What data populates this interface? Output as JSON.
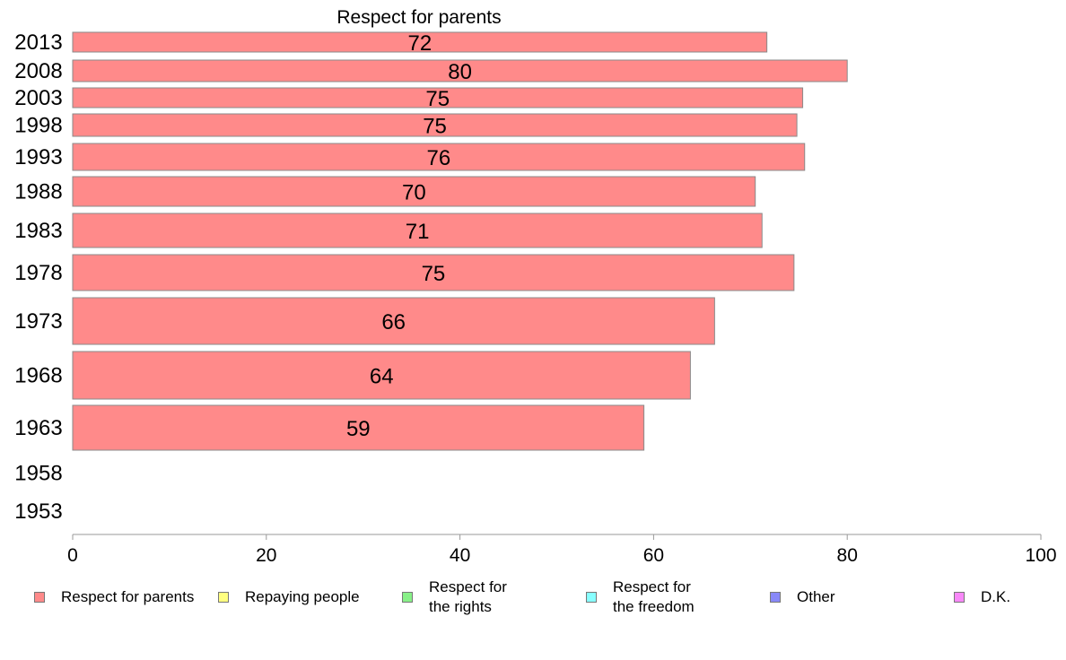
{
  "chart_data": {
    "type": "bar",
    "orientation": "horizontal",
    "title": "Respect for parents",
    "categories": [
      "2013",
      "2008",
      "2003",
      "1998",
      "1993",
      "1988",
      "1983",
      "1978",
      "1973",
      "1968",
      "1963",
      "1958",
      "1953"
    ],
    "series": [
      {
        "name": "Respect for parents",
        "color": "#ff8a8a",
        "values": [
          72,
          80,
          75,
          75,
          76,
          70,
          71,
          75,
          66,
          64,
          59,
          null,
          null
        ],
        "bar_extent": [
          71.7,
          80.0,
          75.4,
          74.8,
          75.6,
          70.5,
          71.2,
          74.5,
          66.3,
          63.8,
          59.0,
          null,
          null
        ]
      }
    ],
    "xlim": [
      0,
      100
    ],
    "xticks": [
      "0",
      "20",
      "40",
      "60",
      "80",
      "100"
    ],
    "grid": false,
    "legend_position": "bottom"
  },
  "legend": {
    "items": [
      {
        "label": "Respect for parents",
        "color": "#ff8a8a"
      },
      {
        "label": "Repaying people",
        "color": "#ffff80"
      },
      {
        "label": "Respect for\nthe rights",
        "color": "#88f088"
      },
      {
        "label": "Respect for\nthe freedom",
        "color": "#88ffff"
      },
      {
        "label": "Other",
        "color": "#8888f8"
      },
      {
        "label": "D.K.",
        "color": "#f888f8"
      }
    ]
  }
}
